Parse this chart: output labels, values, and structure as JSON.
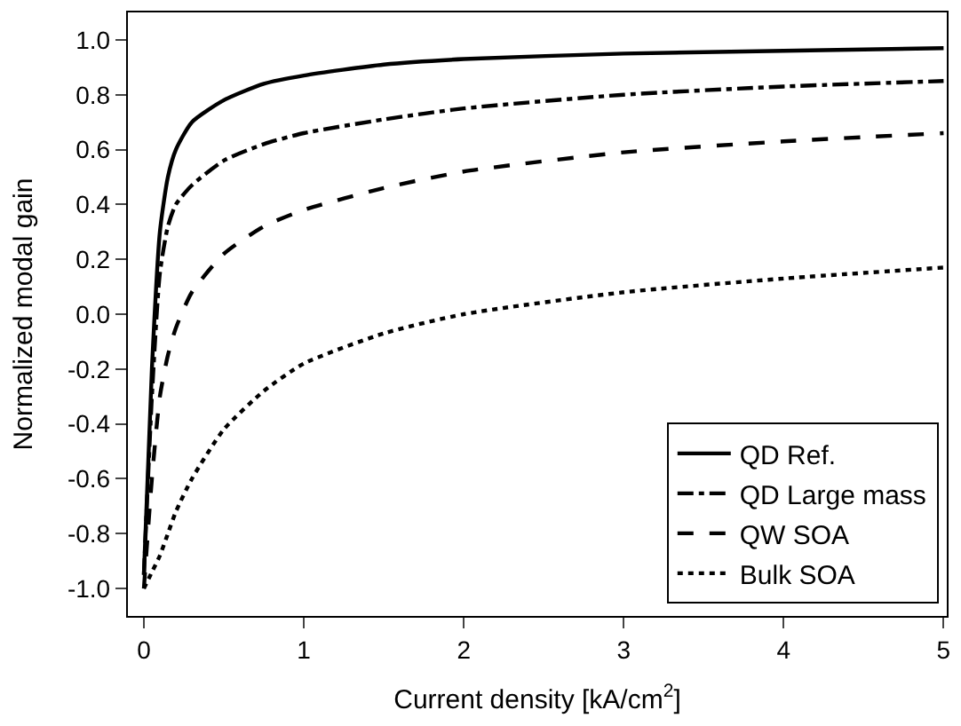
{
  "chart_data": {
    "type": "line",
    "xlabel": "Current density [kA/cm$^{2}$]",
    "ylabel": "Normalized modal gain",
    "xlim": [
      -0.1,
      5.02
    ],
    "xticks": [
      0,
      1,
      2,
      3,
      4,
      5
    ],
    "ylim": [
      -1.1,
      1.1
    ],
    "yticks": [
      {
        "value": -1.0,
        "label": "-1.0"
      },
      {
        "value": -0.8,
        "label": "-0.8"
      },
      {
        "value": -0.6,
        "label": "-0.6"
      },
      {
        "value": -0.4,
        "label": "-0.4"
      },
      {
        "value": -0.2,
        "label": "-0.2"
      },
      {
        "value": 0.0,
        "label": "0.0"
      },
      {
        "value": 0.2,
        "label": "0.2"
      },
      {
        "value": 0.4,
        "label": "0.4"
      },
      {
        "value": 0.6,
        "label": "0.6"
      },
      {
        "value": 0.8,
        "label": "0.8"
      },
      {
        "value": 1.0,
        "label": "1.0"
      }
    ],
    "legend": "bottom right",
    "marker": "none",
    "x": [
      0,
      0.05,
      0.1,
      0.15,
      0.2,
      0.3,
      0.5,
      0.75,
      1,
      1.5,
      2,
      3,
      4,
      5
    ],
    "series": [
      {
        "name": "QD Ref.",
        "color": "#000000",
        "line_style": "solid",
        "values": [
          -0.95,
          -0.2,
          0.3,
          0.5,
          0.6,
          0.7,
          0.78,
          0.84,
          0.87,
          0.91,
          0.93,
          0.95,
          0.96,
          0.97
        ]
      },
      {
        "name": "QD Large mass",
        "color": "#000000",
        "line_style": "dashdot",
        "values": [
          -0.95,
          -0.3,
          0.15,
          0.32,
          0.4,
          0.47,
          0.56,
          0.62,
          0.66,
          0.71,
          0.75,
          0.8,
          0.83,
          0.85
        ]
      },
      {
        "name": "QW SOA",
        "color": "#000000",
        "line_style": "dashed",
        "values": [
          -1.0,
          -0.6,
          -0.3,
          -0.15,
          -0.05,
          0.08,
          0.22,
          0.32,
          0.38,
          0.46,
          0.52,
          0.59,
          0.63,
          0.66
        ]
      },
      {
        "name": "Bulk SOA",
        "color": "#000000",
        "line_style": "dotted",
        "values": [
          -1.0,
          -0.94,
          -0.88,
          -0.8,
          -0.72,
          -0.6,
          -0.42,
          -0.28,
          -0.18,
          -0.07,
          0.0,
          0.08,
          0.13,
          0.17
        ]
      }
    ]
  }
}
